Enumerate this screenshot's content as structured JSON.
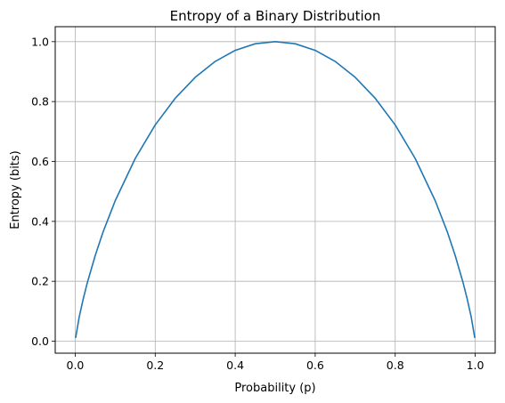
{
  "chart_data": {
    "type": "line",
    "title": "Entropy of a Binary Distribution",
    "xlabel": "Probability (p)",
    "ylabel": "Entropy (bits)",
    "xlim": [
      -0.05,
      1.05
    ],
    "ylim": [
      -0.04,
      1.05
    ],
    "xticks": [
      "0.0",
      "0.2",
      "0.4",
      "0.6",
      "0.8",
      "1.0"
    ],
    "yticks": [
      "0.0",
      "0.2",
      "0.4",
      "0.6",
      "0.8",
      "1.0"
    ],
    "grid": true,
    "series": [
      {
        "color": "#1f77b4",
        "x": [
          0.001,
          0.01,
          0.02,
          0.03,
          0.05,
          0.07,
          0.1,
          0.15,
          0.2,
          0.25,
          0.3,
          0.35,
          0.4,
          0.45,
          0.5,
          0.55,
          0.6,
          0.65,
          0.7,
          0.75,
          0.8,
          0.85,
          0.9,
          0.93,
          0.95,
          0.97,
          0.98,
          0.99,
          0.999
        ],
        "y": [
          0.011,
          0.081,
          0.141,
          0.194,
          0.286,
          0.366,
          0.469,
          0.61,
          0.722,
          0.811,
          0.881,
          0.934,
          0.971,
          0.993,
          1.0,
          0.993,
          0.971,
          0.934,
          0.881,
          0.811,
          0.722,
          0.61,
          0.469,
          0.366,
          0.286,
          0.194,
          0.141,
          0.081,
          0.011
        ]
      }
    ]
  }
}
